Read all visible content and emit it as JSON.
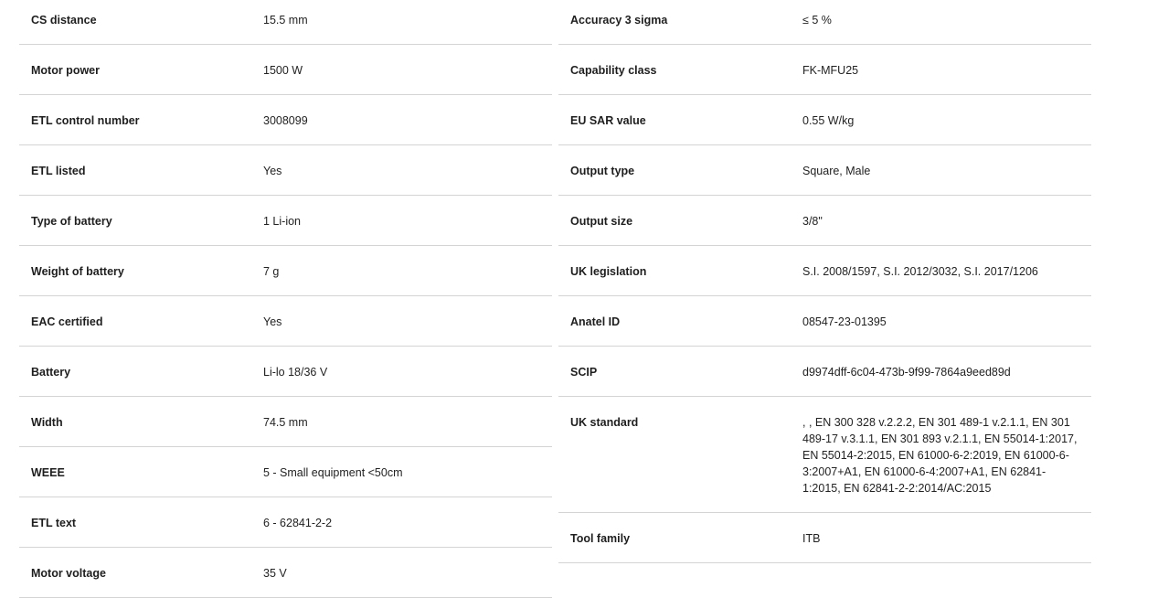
{
  "left": [
    {
      "label": "CS distance",
      "value": "15.5 mm"
    },
    {
      "label": "Motor power",
      "value": "1500 W"
    },
    {
      "label": "ETL control number",
      "value": "3008099"
    },
    {
      "label": "ETL listed",
      "value": "Yes"
    },
    {
      "label": "Type of battery",
      "value": "1 Li-ion"
    },
    {
      "label": "Weight of battery",
      "value": "7 g"
    },
    {
      "label": "EAC certified",
      "value": "Yes"
    },
    {
      "label": "Battery",
      "value": "Li-lo 18/36 V"
    },
    {
      "label": "Width",
      "value": "74.5 mm"
    },
    {
      "label": "WEEE",
      "value": "5 - Small equipment <50cm"
    },
    {
      "label": "ETL text",
      "value": "6 - 62841-2-2"
    },
    {
      "label": "Motor voltage",
      "value": "35 V"
    }
  ],
  "right": [
    {
      "label": "Accuracy 3 sigma",
      "value": "≤ 5 %"
    },
    {
      "label": "Capability class",
      "value": "FK-MFU25"
    },
    {
      "label": "EU SAR value",
      "value": "0.55 W/kg"
    },
    {
      "label": "Output type",
      "value": "Square, Male"
    },
    {
      "label": "Output size",
      "value": "3/8\""
    },
    {
      "label": "UK legislation",
      "value": "S.I. 2008/1597, S.I. 2012/3032, S.I. 2017/1206"
    },
    {
      "label": "Anatel ID",
      "value": "08547-23-01395"
    },
    {
      "label": "SCIP",
      "value": "d9974dff-6c04-473b-9f99-7864a9eed89d"
    },
    {
      "label": "UK standard",
      "value": ", , EN 300 328 v.2.2.2, EN 301 489-1 v.2.1.1, EN 301 489-17 v.3.1.1, EN 301 893 v.2.1.1, EN 55014-1:2017, EN 55014-2:2015, EN 61000-6-2:2019, EN 61000-6-3:2007+A1, EN 61000-6-4:2007+A1, EN 62841-1:2015, EN 62841-2-2:2014/AC:2015"
    },
    {
      "label": "Tool family",
      "value": "ITB"
    }
  ]
}
